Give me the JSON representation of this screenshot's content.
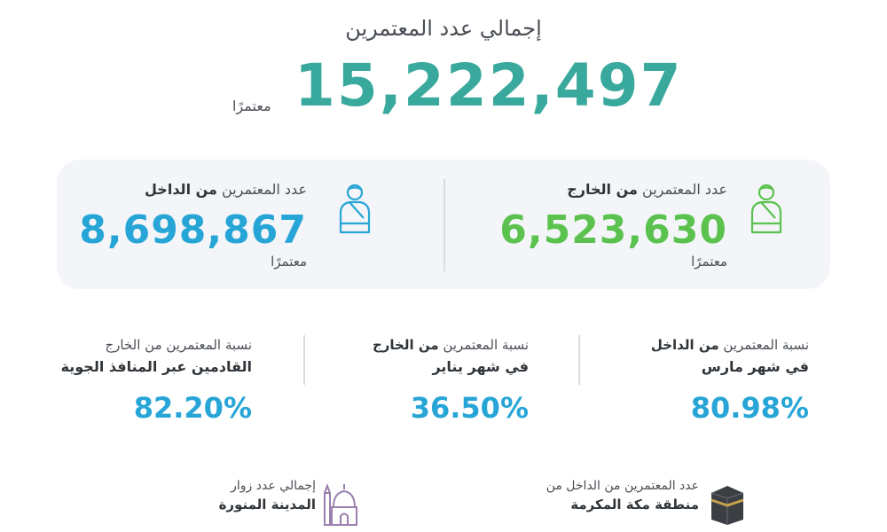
{
  "total": {
    "title": "إجمالي عدد المعتمرين",
    "value": "15,222,497",
    "unit": "معتمرًا"
  },
  "outside": {
    "label_prefix": "عدد المعتمرين ",
    "label_bold": "من الخارج",
    "value": "6,523,630",
    "unit": "معتمرًا",
    "icon": "pilgrim-icon",
    "color": "#5bc24f"
  },
  "inside": {
    "label_prefix": "عدد المعتمرين ",
    "label_bold": "من الداخل",
    "value": "8,698,867",
    "unit": "معتمرًا",
    "icon": "pilgrim-icon",
    "color": "#27a5d6"
  },
  "percentages": [
    {
      "line1_prefix": "نسبة المعتمرين ",
      "line1_bold": "من الداخل",
      "line2": "في شهر مارس",
      "value": "80.98%"
    },
    {
      "line1_prefix": "نسبة المعتمرين ",
      "line1_bold": "من الخارج",
      "line2": "في شهر يناير",
      "value": "36.50%"
    },
    {
      "line1_prefix": "نسبة المعتمرين من الخارج",
      "line1_bold": "",
      "line2": "القادمين عبر المنافذ الجوية",
      "value": "82.20%"
    }
  ],
  "bottom": {
    "makkah": {
      "line1": "عدد المعتمرين من الداخل من",
      "line2": "منطقة مكة المكرمة",
      "icon": "kaaba-icon"
    },
    "madinah": {
      "line1": "إجمالي عدد زوار",
      "line2": "المدينة المنورة",
      "icon": "mosque-icon"
    }
  },
  "colors": {
    "teal": "#3aa99d",
    "green": "#5bc24f",
    "blue": "#27a5d6",
    "purple": "#9b7fae"
  }
}
